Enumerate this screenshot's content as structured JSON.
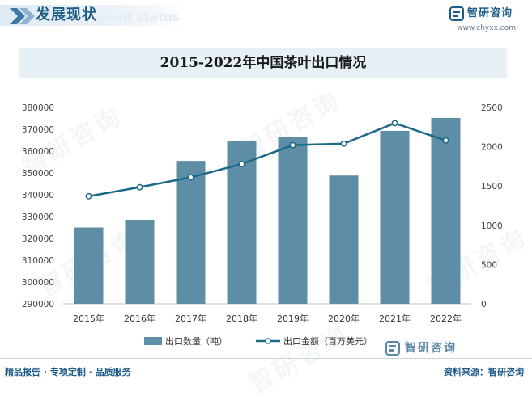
{
  "header": {
    "section_title": "发展现状",
    "section_subtitle": "ment status",
    "logo_text": "智研咨询",
    "site_url": "www.chyxx.com"
  },
  "watermark": "智研咨询",
  "chart_data": {
    "type": "bar",
    "title": "2015-2022年中国茶叶出口情况",
    "categories": [
      "2015年",
      "2016年",
      "2017年",
      "2018年",
      "2019年",
      "2020年",
      "2021年",
      "2022年"
    ],
    "series": [
      {
        "name": "出口数量（吨）",
        "type": "bar",
        "axis": "left",
        "values": [
          325000,
          328500,
          355500,
          364700,
          366500,
          348800,
          369300,
          375200
        ]
      },
      {
        "name": "出口金额（百万美元）",
        "type": "line",
        "axis": "right",
        "values": [
          1370,
          1485,
          1610,
          1780,
          2020,
          2040,
          2300,
          2080
        ]
      }
    ],
    "y_left": {
      "min": 290000,
      "max": 380000,
      "ticks": [
        290000,
        300000,
        310000,
        320000,
        330000,
        340000,
        350000,
        360000,
        370000,
        380000
      ]
    },
    "y_right": {
      "min": 0,
      "max": 2500,
      "ticks": [
        0,
        500,
        1000,
        1500,
        2000,
        2500
      ]
    },
    "legend_position": "bottom",
    "grid": false,
    "colors": {
      "bar": "#5d8ea6",
      "line": "#1b6a88"
    }
  },
  "footer": {
    "slogan": "精品报告 · 专项定制 · 品质服务",
    "logo_text": "智研咨询",
    "source": "资料来源：智研咨询"
  }
}
